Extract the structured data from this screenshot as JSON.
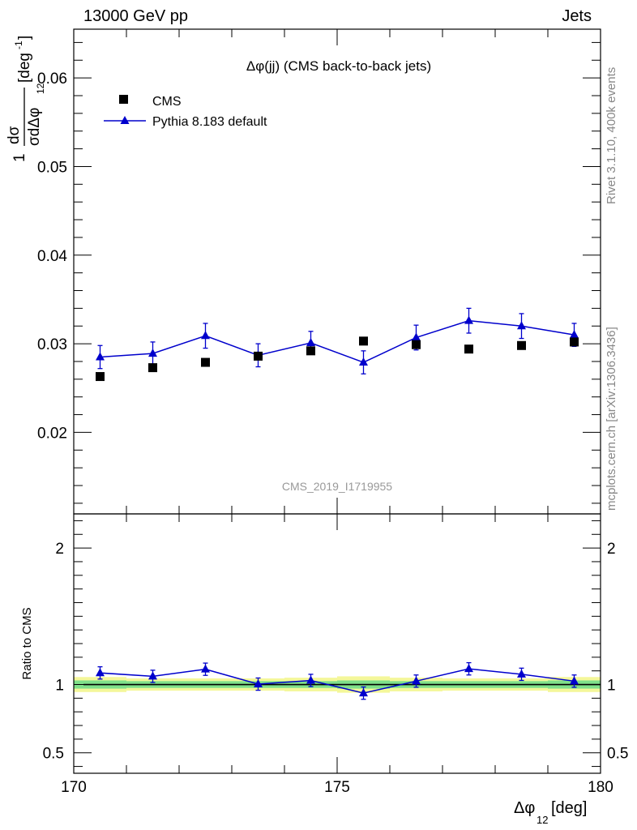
{
  "header": {
    "left": "13000 GeV pp",
    "right": "Jets"
  },
  "side_labels": {
    "rivet": "Rivet 3.1.10,  400k events",
    "mcplots": "mcplots.cern.ch [arXiv:1306.3436]"
  },
  "chart_data": [
    {
      "type": "scatter",
      "title": "Δφ(jj) (CMS back-to-back jets)",
      "watermark": "CMS_2019_I1719955",
      "ylabel": "1/σ dσ/dΔφ12 [deg⁻¹]",
      "ylabel_parts": {
        "one": "1",
        "dsigma": "dσ",
        "denom": "σdΔφ",
        "sub": "12",
        "unit": "[deg",
        "exp": "-1",
        "close": "]"
      },
      "xlim": [
        170,
        180
      ],
      "ylim": [
        0.0108,
        0.0655
      ],
      "yticks": [
        0.02,
        0.03,
        0.04,
        0.05,
        0.06
      ],
      "ytick_labels": [
        "0.02",
        "0.03",
        "0.04",
        "0.05",
        "0.06"
      ],
      "legend": {
        "position": "top-left",
        "entries": [
          "CMS",
          "Pythia 8.183 default"
        ]
      },
      "series": [
        {
          "name": "CMS",
          "marker": "square",
          "color": "#000000",
          "x": [
            170.5,
            171.5,
            172.5,
            173.5,
            174.5,
            175.5,
            176.5,
            177.5,
            178.5,
            179.5
          ],
          "y": [
            0.0263,
            0.0273,
            0.0279,
            0.0286,
            0.0292,
            0.0303,
            0.0299,
            0.0294,
            0.0298,
            0.0302
          ]
        },
        {
          "name": "Pythia 8.183 default",
          "marker": "triangle",
          "color": "#0000cc",
          "x": [
            170.5,
            171.5,
            172.5,
            173.5,
            174.5,
            175.5,
            176.5,
            177.5,
            178.5,
            179.5
          ],
          "y": [
            0.0285,
            0.0289,
            0.0309,
            0.0287,
            0.0301,
            0.0279,
            0.0307,
            0.0326,
            0.032,
            0.031
          ],
          "yerr": [
            0.0013,
            0.0013,
            0.0014,
            0.0013,
            0.0013,
            0.0013,
            0.0014,
            0.0014,
            0.0014,
            0.0013
          ]
        }
      ]
    },
    {
      "type": "scatter",
      "xlabel": "Δφ12 [deg]",
      "xlabel_parts": {
        "main": "Δφ",
        "sub": "12",
        "unit": " [deg]"
      },
      "ylabel": "Ratio to CMS",
      "xlim": [
        170,
        180
      ],
      "ylim": [
        0.35,
        2.25
      ],
      "xticks": [
        170,
        175,
        180
      ],
      "xtick_labels": [
        "170",
        "175",
        "180"
      ],
      "yticks": [
        0.5,
        1,
        2
      ],
      "ytick_labels": [
        "0.5",
        "1",
        "2"
      ],
      "reference": 1,
      "bands": {
        "x_edges": [
          170,
          171,
          172,
          173,
          174,
          175,
          176,
          177,
          178,
          179,
          180
        ],
        "inner_halfwidth": [
          0.03,
          0.025,
          0.025,
          0.025,
          0.025,
          0.03,
          0.025,
          0.025,
          0.025,
          0.03
        ],
        "outer_halfwidth": [
          0.055,
          0.045,
          0.045,
          0.045,
          0.05,
          0.06,
          0.05,
          0.045,
          0.045,
          0.055
        ],
        "inner_color": "#7fe08a",
        "outer_color": "#f4f79a"
      },
      "series": [
        {
          "name": "Pythia 8.183 default",
          "marker": "triangle",
          "color": "#0000cc",
          "x": [
            170.5,
            171.5,
            172.5,
            173.5,
            174.5,
            175.5,
            176.5,
            177.5,
            178.5,
            179.5
          ],
          "y": [
            1.085,
            1.06,
            1.112,
            1.003,
            1.03,
            0.937,
            1.025,
            1.115,
            1.075,
            1.025
          ],
          "yerr": [
            0.045,
            0.045,
            0.045,
            0.045,
            0.045,
            0.045,
            0.045,
            0.045,
            0.045,
            0.045
          ]
        }
      ]
    }
  ]
}
